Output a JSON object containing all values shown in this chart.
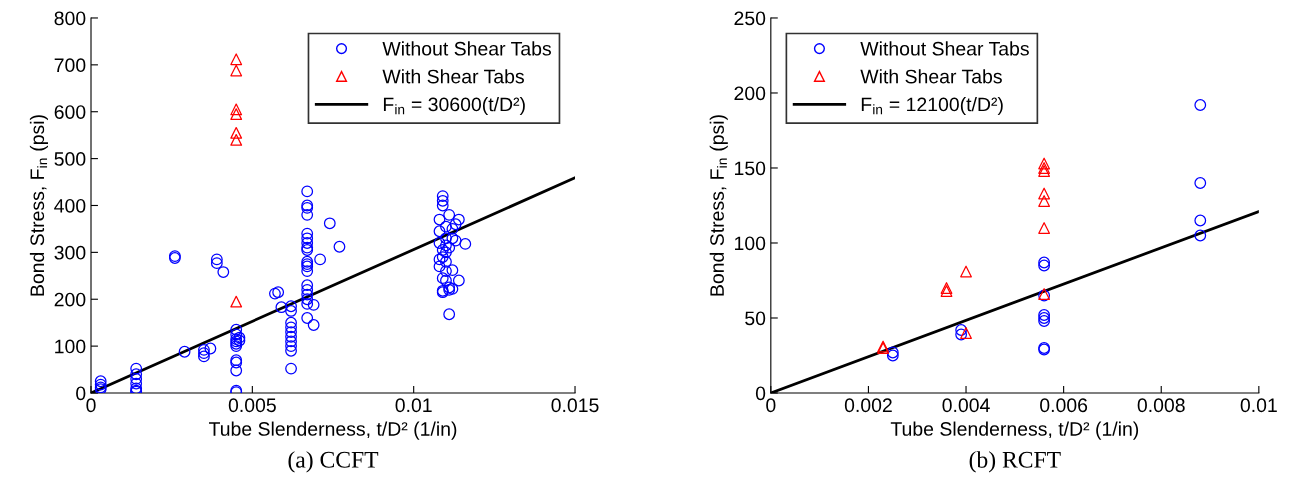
{
  "chart_data": [
    {
      "type": "scatter",
      "xlabel": "Tube Slenderness, t/D² (1/in)",
      "ylabel": "Bond Stress, F$_{in}$ (psi)",
      "annotations": [
        "(a) CCFT"
      ],
      "xlim": [
        0,
        0.015
      ],
      "ylim": [
        0,
        800
      ],
      "xticks": [
        0,
        0.005,
        0.01,
        0.015
      ],
      "yticks": [
        0,
        100,
        200,
        300,
        400,
        500,
        600,
        700,
        800
      ],
      "grid": false,
      "legend": "top right",
      "series": [
        {
          "name": "Without Shear Tabs",
          "color": "#0000ff",
          "marker": "circle",
          "x": [
            0.0003,
            0.0003,
            0.0003,
            0.0003,
            0.0014,
            0.0014,
            0.0014,
            0.0014,
            0.0014,
            0.0014,
            0.0014,
            0.0026,
            0.0026,
            0.0029,
            0.0035,
            0.0035,
            0.0035,
            0.0037,
            0.0039,
            0.0039,
            0.0041,
            0.0045,
            0.0045,
            0.0045,
            0.0045,
            0.0045,
            0.0045,
            0.0045,
            0.0045,
            0.0045,
            0.0045,
            0.0045,
            0.0046,
            0.0046,
            0.0057,
            0.0058,
            0.0059,
            0.0062,
            0.0062,
            0.0062,
            0.0062,
            0.0062,
            0.0062,
            0.0062,
            0.0062,
            0.0062,
            0.0062,
            0.0067,
            0.0067,
            0.0067,
            0.0067,
            0.0067,
            0.0067,
            0.0067,
            0.0067,
            0.0067,
            0.0067,
            0.0067,
            0.0067,
            0.0067,
            0.0067,
            0.0067,
            0.0067,
            0.0067,
            0.0067,
            0.0067,
            0.0069,
            0.0069,
            0.0071,
            0.0074,
            0.0077,
            0.0108,
            0.0108,
            0.0108,
            0.0108,
            0.0108,
            0.0109,
            0.0109,
            0.0109,
            0.0109,
            0.0109,
            0.0109,
            0.0109,
            0.0109,
            0.011,
            0.011,
            0.011,
            0.011,
            0.011,
            0.011,
            0.011,
            0.0111,
            0.0111,
            0.0111,
            0.0111,
            0.0111,
            0.0112,
            0.0112,
            0.0112,
            0.0112,
            0.0113,
            0.0113,
            0.0114,
            0.0114,
            0.0116
          ],
          "values": [
            25,
            18,
            12,
            8,
            52,
            40,
            30,
            20,
            10,
            5,
            3,
            292,
            288,
            88,
            85,
            78,
            92,
            95,
            285,
            277,
            258,
            135,
            125,
            115,
            110,
            105,
            100,
            70,
            65,
            48,
            5,
            2,
            118,
            112,
            212,
            215,
            183,
            185,
            175,
            150,
            140,
            130,
            120,
            110,
            100,
            90,
            52,
            430,
            400,
            395,
            380,
            340,
            330,
            320,
            310,
            305,
            280,
            275,
            270,
            260,
            230,
            220,
            210,
            200,
            190,
            160,
            188,
            145,
            285,
            362,
            312,
            370,
            345,
            320,
            285,
            270,
            420,
            410,
            400,
            305,
            290,
            245,
            218,
            215,
            355,
            330,
            315,
            300,
            280,
            260,
            240,
            380,
            310,
            225,
            220,
            168,
            350,
            330,
            262,
            222,
            360,
            325,
            370,
            240,
            318
          ]
        },
        {
          "name": "With Shear Tabs",
          "color": "#ff0000",
          "marker": "triangle",
          "x": [
            0.0045,
            0.0045,
            0.0045,
            0.0045,
            0.0045,
            0.0045,
            0.0045
          ],
          "values": [
            712,
            688,
            605,
            595,
            555,
            540,
            195
          ]
        },
        {
          "name": "F$_{in}$ = 30600(t/D²)",
          "type": "line",
          "color": "#000000",
          "marker": "none",
          "line_style": "solid",
          "x": [
            0,
            0.015
          ],
          "values": [
            0,
            459
          ]
        }
      ]
    },
    {
      "type": "scatter",
      "xlabel": "Tube Slenderness, t/D² (1/in)",
      "ylabel": "Bond Stress, F$_{in}$ (psi)",
      "annotations": [
        "(b) RCFT"
      ],
      "xlim": [
        0,
        0.01
      ],
      "ylim": [
        0,
        250
      ],
      "xticks": [
        0,
        0.002,
        0.004,
        0.006,
        0.008,
        0.01
      ],
      "yticks": [
        0,
        50,
        100,
        150,
        200,
        250
      ],
      "grid": false,
      "legend": "top left",
      "series": [
        {
          "name": "Without Shear Tabs",
          "color": "#0000ff",
          "marker": "circle",
          "x": [
            0.0025,
            0.0025,
            0.0039,
            0.0039,
            0.0056,
            0.0056,
            0.0056,
            0.0056,
            0.0056,
            0.0056,
            0.0056,
            0.0056,
            0.0088,
            0.0088,
            0.0088,
            0.0088
          ],
          "values": [
            27,
            25,
            42,
            39,
            87,
            85,
            65,
            52,
            50,
            48,
            30,
            29,
            192,
            140,
            115,
            105
          ]
        },
        {
          "name": "With Shear Tabs",
          "color": "#ff0000",
          "marker": "triangle",
          "x": [
            0.0023,
            0.0023,
            0.0036,
            0.0036,
            0.004,
            0.004,
            0.0056,
            0.0056,
            0.0056,
            0.0056,
            0.0056,
            0.0056,
            0.0056
          ],
          "values": [
            31,
            30,
            70,
            68,
            81,
            40,
            153,
            150,
            148,
            133,
            128,
            110,
            66
          ]
        },
        {
          "name": "F$_{in}$ = 12100(t/D²)",
          "type": "line",
          "color": "#000000",
          "marker": "none",
          "line_style": "solid",
          "x": [
            0,
            0.01
          ],
          "values": [
            0,
            121
          ]
        }
      ]
    }
  ]
}
